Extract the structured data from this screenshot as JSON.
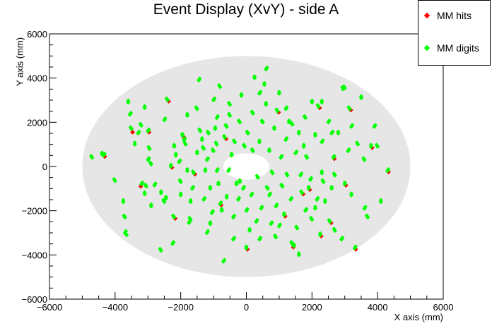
{
  "chart_data": {
    "type": "scatter",
    "title": "Event Display (XvY) - side A",
    "xlabel": "X axis (mm)",
    "ylabel": "Y axis (mm)",
    "xlim": [
      -6000,
      6000
    ],
    "ylim": [
      -6000,
      6000
    ],
    "xticks": [
      "−6000",
      "−4000",
      "−2000",
      "0",
      "2000",
      "4000",
      "6000"
    ],
    "yticks": [
      "−6000",
      "−4000",
      "−2000",
      "0",
      "2000",
      "4000",
      "6000"
    ],
    "legend_position": "top-right",
    "detector_region": {
      "outer_radius": 5000,
      "inner_radius": 700,
      "color": "#e6e6e6"
    },
    "series": [
      {
        "name": "MM hits",
        "color": "#ff0000",
        "marker": "diamond"
      },
      {
        "name": "MM digits",
        "color": "#00ff00",
        "marker": "diamond"
      }
    ],
    "points": [
      [
        -4700,
        400
      ],
      [
        -4400,
        550
      ],
      [
        -4350,
        500
      ],
      [
        -4000,
        -650
      ],
      [
        -3750,
        -1600
      ],
      [
        -3700,
        -3000
      ],
      [
        -3650,
        -3100
      ],
      [
        -3600,
        2900
      ],
      [
        -3550,
        2350
      ],
      [
        -3500,
        1700
      ],
      [
        -3400,
        1000
      ],
      [
        -3300,
        1500
      ],
      [
        -3200,
        1850
      ],
      [
        -3100,
        2650
      ],
      [
        -3200,
        -800
      ],
      [
        -3050,
        -900
      ],
      [
        -3100,
        -1250
      ],
      [
        -3000,
        1600
      ],
      [
        -2950,
        800
      ],
      [
        -2900,
        -1800
      ],
      [
        -2800,
        -850
      ],
      [
        -2500,
        -1600
      ],
      [
        -2450,
        -1450
      ],
      [
        -2500,
        2100
      ],
      [
        -2400,
        3000
      ],
      [
        -2300,
        0
      ],
      [
        -2250,
        -3500
      ],
      [
        -2200,
        -2300
      ],
      [
        -2150,
        500
      ],
      [
        -2050,
        200
      ],
      [
        -2000,
        -700
      ],
      [
        -1950,
        1400
      ],
      [
        -1900,
        1200
      ],
      [
        -1850,
        1000
      ],
      [
        -1800,
        2300
      ],
      [
        -1750,
        -2550
      ],
      [
        -1700,
        -2400
      ],
      [
        -1700,
        -1600
      ],
      [
        -1650,
        -1000
      ],
      [
        -1600,
        -300
      ],
      [
        -1500,
        600
      ],
      [
        -1450,
        3900
      ],
      [
        -1400,
        1600
      ],
      [
        -1350,
        1200
      ],
      [
        -1300,
        -1500
      ],
      [
        -1300,
        800
      ],
      [
        -1250,
        -200
      ],
      [
        -1200,
        300
      ],
      [
        -1150,
        1500
      ],
      [
        -1100,
        -1000
      ],
      [
        -1050,
        -2100
      ],
      [
        -1000,
        700
      ],
      [
        -950,
        1700
      ],
      [
        -900,
        -200
      ],
      [
        -900,
        1000
      ],
      [
        -850,
        -800
      ],
      [
        -800,
        -1700
      ],
      [
        -800,
        3600
      ],
      [
        -750,
        -2000
      ],
      [
        -700,
        -4300
      ],
      [
        -650,
        1300
      ],
      [
        -600,
        -1400
      ],
      [
        -550,
        -200
      ],
      [
        -500,
        2800
      ],
      [
        -450,
        500
      ],
      [
        -400,
        -2300
      ],
      [
        -350,
        1100
      ],
      [
        -300,
        -800
      ],
      [
        -250,
        -1500
      ],
      [
        -200,
        2000
      ],
      [
        -150,
        3200
      ],
      [
        -100,
        -1000
      ],
      [
        -50,
        900
      ],
      [
        0,
        -3700
      ],
      [
        0,
        -2000
      ],
      [
        50,
        1500
      ],
      [
        100,
        -2900
      ],
      [
        150,
        -1300
      ],
      [
        200,
        2400
      ],
      [
        250,
        4000
      ],
      [
        300,
        -2500
      ],
      [
        350,
        -500
      ],
      [
        400,
        1100
      ],
      [
        450,
        -1900
      ],
      [
        500,
        2000
      ],
      [
        550,
        3700
      ],
      [
        600,
        4400
      ],
      [
        650,
        -1000
      ],
      [
        700,
        700
      ],
      [
        750,
        -2600
      ],
      [
        800,
        -300
      ],
      [
        850,
        1700
      ],
      [
        900,
        -1800
      ],
      [
        950,
        2500
      ],
      [
        1000,
        3300
      ],
      [
        1050,
        400
      ],
      [
        1100,
        -900
      ],
      [
        1150,
        -2200
      ],
      [
        1200,
        1200
      ],
      [
        1250,
        -400
      ],
      [
        1300,
        2000
      ],
      [
        1350,
        -1500
      ],
      [
        1400,
        -3500
      ],
      [
        1450,
        -3600
      ],
      [
        1500,
        600
      ],
      [
        1550,
        -2800
      ],
      [
        1600,
        1500
      ],
      [
        1650,
        -400
      ],
      [
        1700,
        -1200
      ],
      [
        1750,
        900
      ],
      [
        1800,
        -2000
      ],
      [
        1850,
        400
      ],
      [
        1900,
        -1000
      ],
      [
        1950,
        -600
      ],
      [
        2000,
        -2400
      ],
      [
        2100,
        1400
      ],
      [
        2150,
        -1500
      ],
      [
        2200,
        2700
      ],
      [
        2250,
        -3100
      ],
      [
        2300,
        1100
      ],
      [
        2350,
        -700
      ],
      [
        2400,
        -1600
      ],
      [
        2500,
        2000
      ],
      [
        2550,
        -2500
      ],
      [
        2600,
        -1000
      ],
      [
        2650,
        400
      ],
      [
        2700,
        -2900
      ],
      [
        2800,
        1500
      ],
      [
        2900,
        -3300
      ],
      [
        2950,
        3500
      ],
      [
        3000,
        -800
      ],
      [
        3100,
        700
      ],
      [
        3150,
        2600
      ],
      [
        3200,
        -1300
      ],
      [
        3300,
        -3700
      ],
      [
        3400,
        1000
      ],
      [
        3500,
        3100
      ],
      [
        3600,
        -1900
      ],
      [
        3700,
        -2300
      ],
      [
        3800,
        900
      ],
      [
        3900,
        1800
      ],
      [
        4000,
        900
      ],
      [
        4100,
        -1600
      ],
      [
        4300,
        -200
      ],
      [
        3000,
        3550
      ],
      [
        2300,
        2900
      ],
      [
        -1200,
        -3000
      ],
      [
        -2600,
        -3800
      ],
      [
        1600,
        -4000
      ],
      [
        400,
        -3300
      ],
      [
        -3700,
        -2300
      ],
      [
        -2600,
        -1200
      ],
      [
        -1000,
        3000
      ],
      [
        -500,
        2300
      ],
      [
        600,
        2800
      ],
      [
        1200,
        2600
      ],
      [
        1800,
        2200
      ],
      [
        2000,
        2900
      ],
      [
        2600,
        1500
      ],
      [
        -2900,
        100
      ],
      [
        -2000,
        -1300
      ],
      [
        -400,
        -3300
      ],
      [
        900,
        -3200
      ],
      [
        2300,
        -300
      ],
      [
        3200,
        1800
      ],
      [
        -1500,
        2600
      ],
      [
        -2200,
        900
      ],
      [
        -900,
        2200
      ],
      [
        200,
        700
      ],
      [
        -200,
        -700
      ],
      [
        700,
        -1300
      ],
      [
        1400,
        1900
      ],
      [
        -1800,
        -200
      ],
      [
        1000,
        -2700
      ],
      [
        -600,
        1800
      ],
      [
        2100,
        -1900
      ],
      [
        -3000,
        300
      ],
      [
        3600,
        300
      ],
      [
        -1100,
        -2600
      ],
      [
        400,
        3300
      ],
      [
        2700,
        -400
      ]
    ],
    "hit_points": [
      [
        -4350,
        500
      ],
      [
        -3500,
        1600
      ],
      [
        -3250,
        -850
      ],
      [
        -2300,
        0
      ],
      [
        -2200,
        -2300
      ],
      [
        -1600,
        -300
      ],
      [
        -650,
        1300
      ],
      [
        0,
        -3700
      ],
      [
        1400,
        -3600
      ],
      [
        1700,
        -1200
      ],
      [
        2250,
        -3100
      ],
      [
        2650,
        400
      ],
      [
        3000,
        -800
      ],
      [
        3300,
        -3700
      ],
      [
        3800,
        900
      ],
      [
        4300,
        -200
      ],
      [
        -2400,
        3000
      ],
      [
        950,
        2500
      ],
      [
        2200,
        2700
      ],
      [
        -800,
        -1700
      ],
      [
        1150,
        -2200
      ],
      [
        -3000,
        1600
      ],
      [
        2550,
        -2500
      ],
      [
        1900,
        -1000
      ],
      [
        3150,
        2600
      ],
      [
        -1950,
        1400
      ]
    ]
  },
  "legend": {
    "hits_label": "MM hits",
    "digits_label": "MM digits"
  }
}
